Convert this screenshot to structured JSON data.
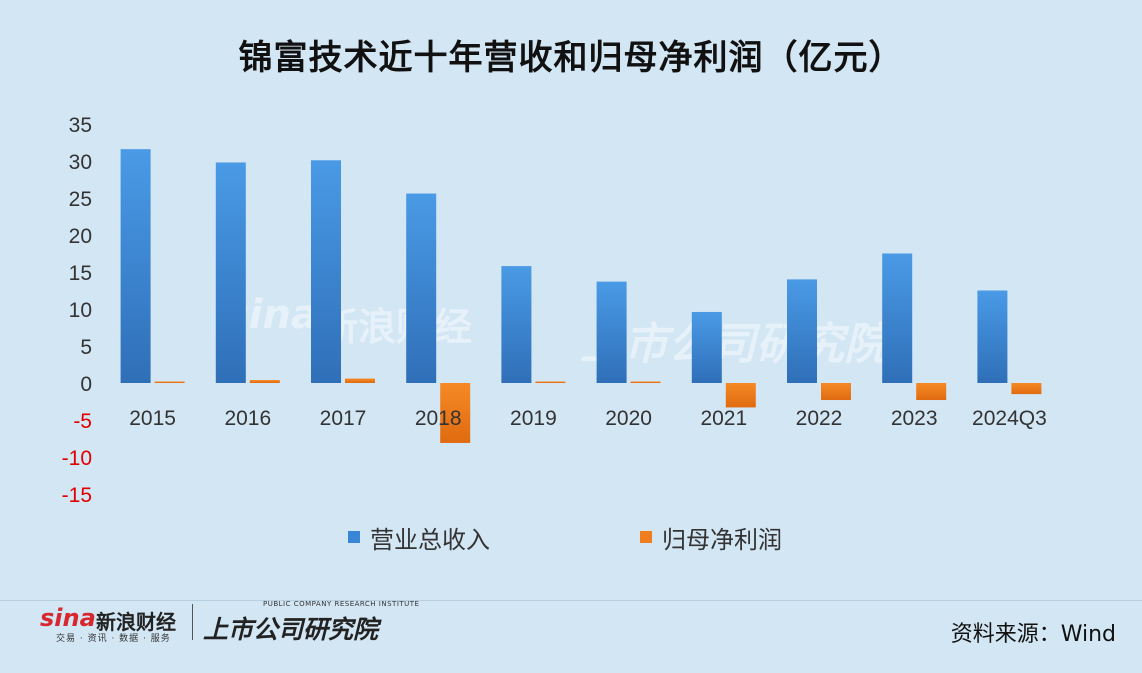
{
  "chart_data": {
    "type": "bar",
    "title": "锦富技术近十年营收和归母净利润（亿元）",
    "categories": [
      "2015",
      "2016",
      "2017",
      "2018",
      "2019",
      "2020",
      "2021",
      "2022",
      "2023",
      "2024Q3"
    ],
    "series": [
      {
        "name": "营业总收入",
        "color": "#3a86d6",
        "values": [
          31.6,
          29.8,
          30.1,
          25.6,
          15.8,
          13.7,
          9.6,
          14.0,
          17.5,
          12.5
        ]
      },
      {
        "name": "归母净利润",
        "color": "#f07d1e",
        "values": [
          0.2,
          0.4,
          0.6,
          -8.1,
          0.2,
          0.2,
          -3.3,
          -2.3,
          -2.3,
          -1.5
        ]
      }
    ],
    "y_ticks": [
      "35",
      "30",
      "25",
      "20",
      "15",
      "10",
      "5",
      "0",
      "-5",
      "-10",
      "-15"
    ],
    "ylim": [
      -15,
      35
    ],
    "negative_tick_color": "#e00000",
    "legend_position": "bottom"
  },
  "footer": {
    "sina_word": "sina",
    "sina_cn": "新浪财经",
    "sina_sub": "交易 · 资讯 · 数据 · 服务",
    "inst_sub": "PUBLIC COMPANY RESEARCH INSTITUTE",
    "inst_cn": "上市公司研究院",
    "source": "资料来源：Wind"
  }
}
